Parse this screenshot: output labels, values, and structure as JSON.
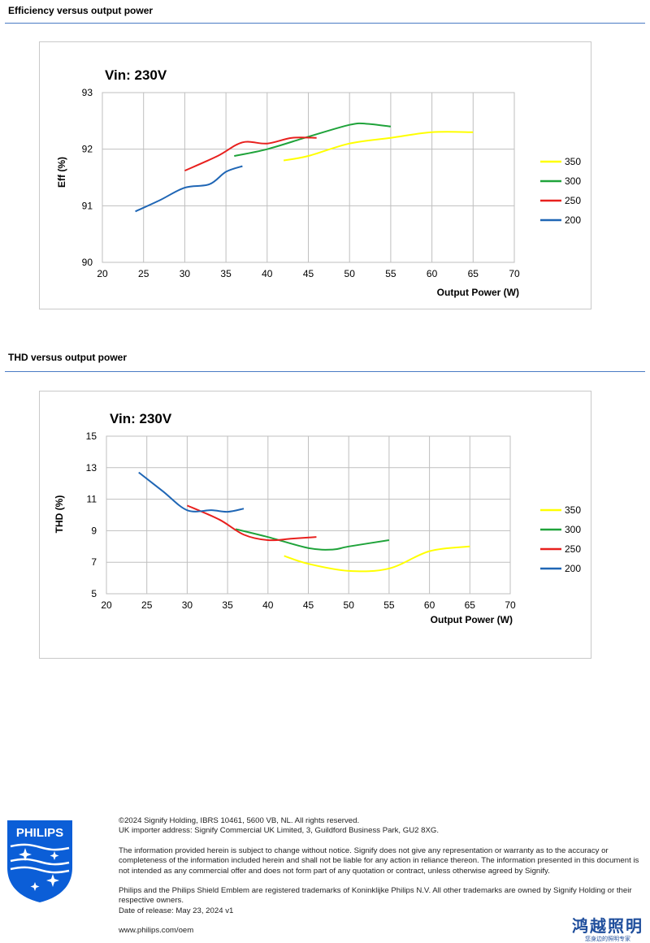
{
  "sections": [
    {
      "title": "Efficiency versus output power"
    },
    {
      "title": "THD versus output power"
    }
  ],
  "chart_data": [
    {
      "type": "line",
      "title": "Vin: 230V",
      "xlabel": "Output Power (W)",
      "ylabel": "Eff  (%)",
      "xlim": [
        20,
        70
      ],
      "ylim": [
        90,
        93
      ],
      "xticks": [
        20,
        25,
        30,
        35,
        40,
        45,
        50,
        55,
        60,
        65,
        70
      ],
      "yticks": [
        90,
        91,
        92,
        93
      ],
      "grid": true,
      "legend": "right",
      "series": [
        {
          "name": "350",
          "color": "#ffff00",
          "points": [
            [
              42,
              91.8
            ],
            [
              45,
              91.88
            ],
            [
              50,
              92.1
            ],
            [
              55,
              92.2
            ],
            [
              60,
              92.3
            ],
            [
              65,
              92.3
            ]
          ]
        },
        {
          "name": "300",
          "color": "#1fa33a",
          "points": [
            [
              36,
              91.88
            ],
            [
              40,
              92.0
            ],
            [
              45,
              92.22
            ],
            [
              50,
              92.43
            ],
            [
              52,
              92.45
            ],
            [
              55,
              92.4
            ]
          ]
        },
        {
          "name": "250",
          "color": "#e8201e",
          "points": [
            [
              30,
              91.62
            ],
            [
              34,
              91.88
            ],
            [
              37,
              92.12
            ],
            [
              40,
              92.1
            ],
            [
              43,
              92.2
            ],
            [
              46,
              92.2
            ]
          ]
        },
        {
          "name": "200",
          "color": "#1f66b5",
          "points": [
            [
              24,
              90.9
            ],
            [
              27,
              91.1
            ],
            [
              30,
              91.32
            ],
            [
              33,
              91.38
            ],
            [
              35,
              91.6
            ],
            [
              37,
              91.7
            ]
          ]
        }
      ]
    },
    {
      "type": "line",
      "title": "Vin: 230V",
      "xlabel": "Output Power (W)",
      "ylabel": "THD  (%)",
      "xlim": [
        20,
        70
      ],
      "ylim": [
        5,
        15
      ],
      "xticks": [
        20,
        25,
        30,
        35,
        40,
        45,
        50,
        55,
        60,
        65,
        70
      ],
      "yticks": [
        5,
        7,
        9,
        11,
        13,
        15
      ],
      "grid": true,
      "legend": "right",
      "series": [
        {
          "name": "350",
          "color": "#ffff00",
          "points": [
            [
              42,
              7.4
            ],
            [
              45,
              6.9
            ],
            [
              50,
              6.45
            ],
            [
              55,
              6.6
            ],
            [
              60,
              7.7
            ],
            [
              65,
              8.0
            ]
          ]
        },
        {
          "name": "300",
          "color": "#1fa33a",
          "points": [
            [
              36,
              9.1
            ],
            [
              40,
              8.6
            ],
            [
              45,
              7.9
            ],
            [
              48,
              7.8
            ],
            [
              50,
              8.0
            ],
            [
              55,
              8.4
            ]
          ]
        },
        {
          "name": "250",
          "color": "#e8201e",
          "points": [
            [
              30,
              10.6
            ],
            [
              34,
              9.7
            ],
            [
              37,
              8.75
            ],
            [
              40,
              8.4
            ],
            [
              43,
              8.5
            ],
            [
              46,
              8.6
            ]
          ]
        },
        {
          "name": "200",
          "color": "#1f66b5",
          "points": [
            [
              24,
              12.7
            ],
            [
              27,
              11.5
            ],
            [
              30,
              10.3
            ],
            [
              33,
              10.3
            ],
            [
              35,
              10.2
            ],
            [
              37,
              10.4
            ]
          ]
        }
      ]
    }
  ],
  "footer": {
    "line1": "©2024 Signify Holding, IBRS 10461, 5600 VB, NL. All rights reserved.",
    "line2": "UK importer address: Signify Commercial UK Limited, 3, Guildford Business Park, GU2 8XG.",
    "disclaimer": "The information provided herein is subject to change without notice. Signify does not give any representation or warranty as to the accuracy or completeness of the information included herein and shall not be liable for any action in reliance thereon. The information presented in this document is not intended as any commercial offer and does not form part of any quotation or contract, unless otherwise agreed by Signify.",
    "trademarks": "Philips and the Philips Shield Emblem are registered trademarks of Koninklijke Philips N.V. All other trademarks are owned by Signify Holding or their respective owners.",
    "release": "Date of release: May 23, 2024 v1",
    "url": "www.philips.com/oem"
  },
  "logo": {
    "text": "PHILIPS",
    "color": "#0b5ed7"
  },
  "brand_cn": {
    "name": "鸿越照明",
    "tagline": "您身边的照明专家",
    "color": "#1f4e9c"
  }
}
